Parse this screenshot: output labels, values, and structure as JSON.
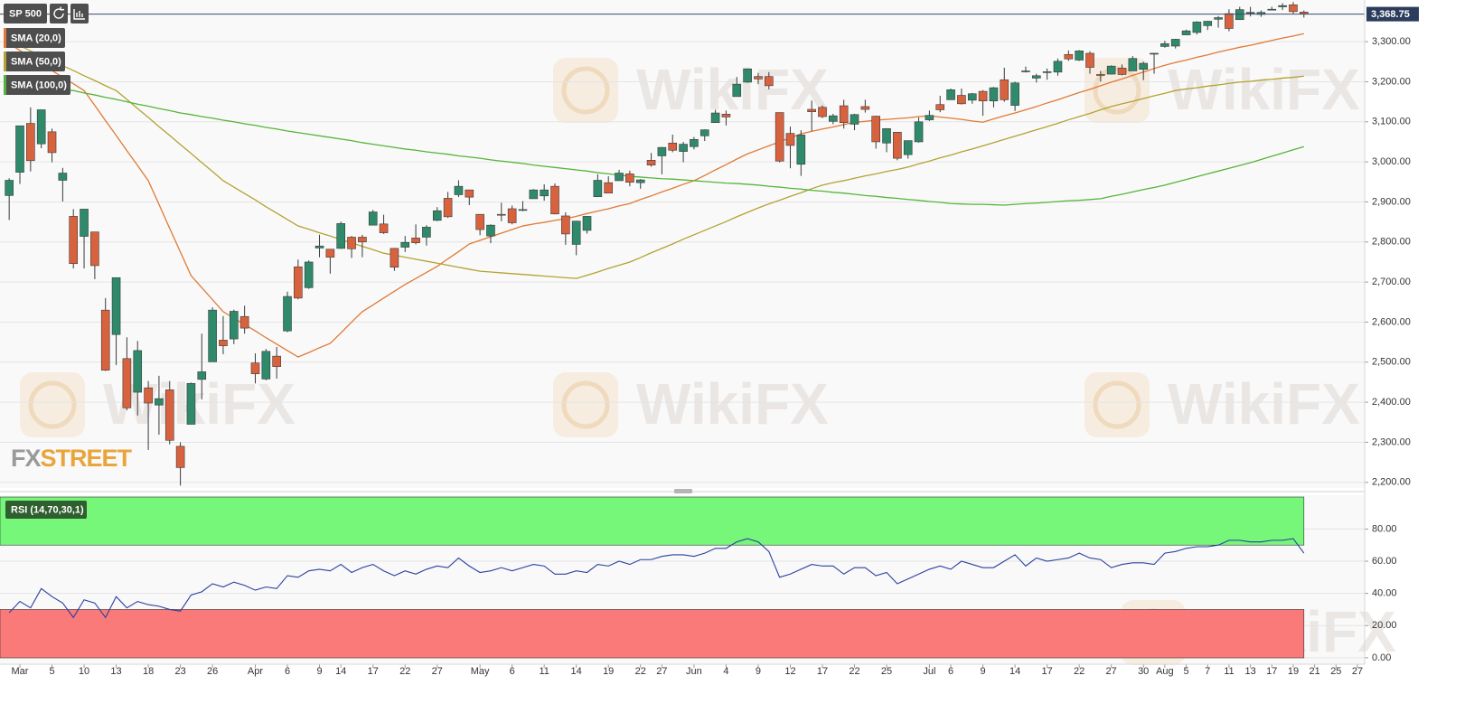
{
  "chart_data": {
    "type": "candlestick",
    "symbol": "SP 500",
    "categories": [
      null,
      "Mar",
      null,
      null,
      "5",
      null,
      null,
      "10",
      null,
      null,
      "13",
      null,
      null,
      "18",
      null,
      null,
      "23",
      null,
      null,
      "26",
      null,
      null,
      null,
      "Apr",
      null,
      null,
      "6",
      null,
      null,
      "9",
      null,
      "14",
      null,
      null,
      "17",
      null,
      null,
      "22",
      null,
      null,
      "27",
      null,
      null,
      null,
      "May",
      null,
      null,
      "6",
      null,
      null,
      "11",
      null,
      null,
      "14",
      null,
      null,
      "19",
      null,
      null,
      "22",
      null,
      "27",
      null,
      null,
      "Jun",
      null,
      null,
      "4",
      null,
      null,
      "9",
      null,
      null,
      "12",
      null,
      null,
      "17",
      null,
      null,
      "22",
      null,
      null,
      "25",
      null,
      null,
      null,
      "Jul",
      null,
      "6",
      null,
      null,
      "9",
      null,
      null,
      "14",
      null,
      null,
      "17",
      null,
      null,
      "22",
      null,
      null,
      "27",
      null,
      null,
      "30",
      null,
      "Aug",
      null,
      "5",
      null,
      "7",
      null,
      "11",
      null,
      "13",
      null,
      "17",
      null,
      "19",
      null,
      "21",
      null,
      "25",
      null,
      "27"
    ],
    "open": [
      2916,
      2974,
      3096,
      3045,
      3075,
      2954,
      2864,
      2814,
      2825,
      2630,
      2569,
      2509,
      2425,
      2436,
      2393,
      2431,
      2290,
      2345,
      2457,
      2501,
      2555,
      2558,
      2614,
      2498,
      2458,
      2515,
      2578,
      2738,
      2686,
      2785,
      2782,
      2784,
      2812,
      2812,
      2842,
      2845,
      2784,
      2787,
      2810,
      2812,
      2854,
      2909,
      2918,
      2930,
      2869,
      2815,
      2869,
      2883,
      2879,
      2908,
      2915,
      2939,
      2865,
      2794,
      2829,
      2913,
      2948,
      2953,
      2970,
      2948,
      3004,
      3015,
      3047,
      3026,
      3038,
      3065,
      3098,
      3119,
      3163,
      3199,
      3213,
      3213,
      3123,
      3071,
      2994,
      3131,
      3136,
      3101,
      3140,
      3094,
      3138,
      3114,
      3047,
      3074,
      3018,
      3050,
      3105,
      3143,
      3155,
      3166,
      3154,
      3176,
      3152,
      3205,
      3141,
      3225,
      3209,
      3224,
      3224,
      3268,
      3254,
      3271,
      3218,
      3219,
      3234,
      3227,
      3231,
      3270,
      3288,
      3289,
      3317,
      3323,
      3340,
      3356,
      3370,
      3355,
      3372,
      3368,
      3380,
      3387,
      3392,
      3374,
      null,
      null,
      null,
      null,
      null
    ],
    "high": [
      2959,
      3090,
      3136,
      3130,
      3083,
      2985,
      2882,
      2882,
      2825,
      2660,
      2711,
      2562,
      2553,
      2453,
      2466,
      2453,
      2300,
      2449,
      2571,
      2637,
      2615,
      2631,
      2641,
      2522,
      2533,
      2538,
      2676,
      2756,
      2754,
      2818,
      2782,
      2851,
      2815,
      2818,
      2880,
      2868,
      2785,
      2815,
      2844,
      2842,
      2887,
      2925,
      2954,
      2930,
      2869,
      2844,
      2898,
      2891,
      2902,
      2932,
      2944,
      2946,
      2874,
      2853,
      2865,
      2969,
      2964,
      2980,
      2978,
      2957,
      3022,
      3037,
      3068,
      3050,
      3062,
      3081,
      3130,
      3128,
      3212,
      3233,
      3222,
      3224,
      3123,
      3088,
      3079,
      3153,
      3141,
      3120,
      3155,
      3120,
      3155,
      3115,
      3084,
      3074,
      3053,
      3111,
      3128,
      3165,
      3183,
      3183,
      3172,
      3179,
      3187,
      3235,
      3200,
      3238,
      3220,
      3233,
      3258,
      3278,
      3279,
      3276,
      3227,
      3241,
      3243,
      3264,
      3250,
      3272,
      3302,
      3307,
      3330,
      3351,
      3352,
      3364,
      3381,
      3387,
      3387,
      3378,
      3387,
      3396,
      3399,
      3378,
      null,
      null,
      null,
      null,
      null
    ],
    "low": [
      2855,
      2945,
      2976,
      3034,
      2999,
      2901,
      2734,
      2734,
      2707,
      2478,
      2493,
      2380,
      2367,
      2281,
      2319,
      2295,
      2192,
      2345,
      2407,
      2501,
      2520,
      2545,
      2571,
      2447,
      2455,
      2459,
      2575,
      2657,
      2683,
      2762,
      2721,
      2783,
      2760,
      2762,
      2842,
      2820,
      2728,
      2775,
      2794,
      2791,
      2852,
      2860,
      2912,
      2892,
      2817,
      2797,
      2852,
      2844,
      2877,
      2908,
      2903,
      2869,
      2793,
      2767,
      2821,
      2913,
      2922,
      2953,
      2939,
      2933,
      2988,
      2969,
      3024,
      2999,
      3031,
      3052,
      3098,
      3091,
      3163,
      3197,
      3194,
      3181,
      2999,
      2984,
      2965,
      3077,
      3109,
      3094,
      3083,
      3079,
      3123,
      3033,
      3024,
      3004,
      3008,
      3048,
      3102,
      3124,
      3155,
      3143,
      3145,
      3115,
      3136,
      3150,
      3127,
      3223,
      3198,
      3205,
      3215,
      3252,
      3252,
      3220,
      3200,
      3218,
      3216,
      3227,
      3204,
      3220,
      3285,
      3283,
      3317,
      3318,
      3329,
      3335,
      3326,
      3355,
      3363,
      3362,
      3379,
      3379,
      3370,
      3360,
      null,
      null,
      null,
      null,
      null
    ],
    "close": [
      2954,
      3090,
      3003,
      3130,
      3023,
      2972,
      2746,
      2882,
      2741,
      2480,
      2711,
      2386,
      2529,
      2398,
      2409,
      2305,
      2237,
      2447,
      2476,
      2630,
      2541,
      2627,
      2585,
      2471,
      2527,
      2489,
      2664,
      2660,
      2750,
      2790,
      2762,
      2846,
      2783,
      2800,
      2875,
      2823,
      2737,
      2799,
      2798,
      2837,
      2878,
      2863,
      2939,
      2912,
      2831,
      2842,
      2868,
      2848,
      2881,
      2930,
      2930,
      2870,
      2820,
      2852,
      2864,
      2954,
      2922,
      2972,
      2949,
      2955,
      2992,
      3036,
      3029,
      3044,
      3056,
      3080,
      3122,
      3112,
      3194,
      3232,
      3207,
      3190,
      3002,
      3041,
      3067,
      3125,
      3113,
      3115,
      3098,
      3118,
      3131,
      3050,
      3083,
      3009,
      3053,
      3100,
      3116,
      3130,
      3180,
      3145,
      3170,
      3152,
      3185,
      3155,
      3197,
      3227,
      3215,
      3225,
      3251,
      3257,
      3277,
      3236,
      3216,
      3239,
      3218,
      3258,
      3246,
      3271,
      3295,
      3306,
      3327,
      3349,
      3351,
      3360,
      3333,
      3380,
      3373,
      3373,
      3381,
      3390,
      3375,
      3368.75,
      null,
      null,
      null,
      null,
      null
    ],
    "up_color": "#2f8a6c",
    "down_color": "#d9623e",
    "ylim": [
      2186,
      3404
    ],
    "yticks": [
      {
        "value": 2200,
        "label": "2,200.00"
      },
      {
        "value": 2300,
        "label": "2,300.00"
      },
      {
        "value": 2400,
        "label": "2,400.00"
      },
      {
        "value": 2500,
        "label": "2,500.00"
      },
      {
        "value": 2600,
        "label": "2,600.00"
      },
      {
        "value": 2700,
        "label": "2,700.00"
      },
      {
        "value": 2800,
        "label": "2,800.00"
      },
      {
        "value": 2900,
        "label": "2,900.00"
      },
      {
        "value": 3000,
        "label": "3,000.00"
      },
      {
        "value": 3100,
        "label": "3,100.00"
      },
      {
        "value": 3200,
        "label": "3,200.00"
      },
      {
        "value": 3300,
        "label": "3,300.00"
      }
    ],
    "grid": true,
    "last_price": {
      "value": 3368.75,
      "label": "3,368.75"
    },
    "series": [
      {
        "name": "SMA (20,0)",
        "color": "#e07a35",
        "values": [
          3295,
          3278,
          3261,
          3245,
          3228,
          3211,
          3195,
          3178,
          3141,
          3103,
          3066,
          3028,
          2991,
          2953,
          2894,
          2834,
          2775,
          2716,
          2686,
          2656,
          2626,
          2610,
          2594,
          2578,
          2561,
          2545,
          2529,
          2513,
          2524,
          2536,
          2547,
          2573,
          2600,
          2626,
          2643,
          2660,
          2677,
          2694,
          2709,
          2724,
          2739,
          2758,
          2776,
          2795,
          2804,
          2813,
          2822,
          2831,
          2840,
          2845,
          2849,
          2854,
          2858,
          2864,
          2871,
          2877,
          2883,
          2890,
          2896,
          2906,
          2915,
          2925,
          2934,
          2944,
          2953,
          2966,
          2980,
          2993,
          3007,
          3020,
          3030,
          3040,
          3050,
          3060,
          3070,
          3076,
          3082,
          3087,
          3093,
          3099,
          3101,
          3104,
          3106,
          3108,
          3110,
          3113,
          3115,
          3112,
          3109,
          3106,
          3102,
          3099,
          3107,
          3115,
          3122,
          3130,
          3138,
          3147,
          3155,
          3164,
          3173,
          3181,
          3190,
          3199,
          3207,
          3216,
          3224,
          3233,
          3241,
          3248,
          3254,
          3261,
          3267,
          3274,
          3280,
          3286,
          3291,
          3297,
          3303,
          3309,
          3314,
          3320,
          null,
          null,
          null,
          null,
          null
        ]
      },
      {
        "name": "SMA (50,0)",
        "color": "#b3a332",
        "values": [
          3302,
          3290,
          3277,
          3265,
          3252,
          3240,
          3228,
          3215,
          3203,
          3190,
          3178,
          3156,
          3133,
          3111,
          3088,
          3066,
          3043,
          3021,
          2998,
          2976,
          2953,
          2937,
          2921,
          2905,
          2888,
          2872,
          2856,
          2840,
          2832,
          2823,
          2815,
          2806,
          2798,
          2789,
          2781,
          2772,
          2767,
          2762,
          2757,
          2752,
          2747,
          2742,
          2737,
          2732,
          2727,
          2725,
          2723,
          2721,
          2719,
          2717,
          2715,
          2713,
          2711,
          2709,
          2717,
          2725,
          2734,
          2742,
          2750,
          2761,
          2773,
          2784,
          2795,
          2807,
          2818,
          2829,
          2840,
          2851,
          2863,
          2874,
          2885,
          2895,
          2904,
          2914,
          2923,
          2933,
          2942,
          2948,
          2953,
          2959,
          2965,
          2970,
          2976,
          2981,
          2987,
          2995,
          3002,
          3010,
          3017,
          3025,
          3032,
          3040,
          3048,
          3056,
          3064,
          3072,
          3080,
          3088,
          3096,
          3105,
          3113,
          3121,
          3130,
          3138,
          3145,
          3151,
          3158,
          3165,
          3171,
          3178,
          3182,
          3185,
          3189,
          3192,
          3196,
          3199,
          3201,
          3204,
          3206,
          3209,
          3211,
          3214,
          null,
          null,
          null,
          null,
          null
        ]
      },
      {
        "name": "SMA (100,0)",
        "color": "#55b53a",
        "values": [
          3190,
          3188,
          3186,
          3184,
          3182,
          3180,
          3178,
          3172,
          3167,
          3161,
          3156,
          3150,
          3144,
          3139,
          3133,
          3128,
          3122,
          3118,
          3113,
          3109,
          3104,
          3100,
          3095,
          3091,
          3086,
          3082,
          3077,
          3073,
          3069,
          3065,
          3061,
          3057,
          3053,
          3048,
          3044,
          3040,
          3036,
          3032,
          3029,
          3025,
          3022,
          3019,
          3015,
          3012,
          3009,
          3005,
          3002,
          2999,
          2996,
          2992,
          2989,
          2986,
          2983,
          2980,
          2977,
          2973,
          2970,
          2967,
          2964,
          2962,
          2960,
          2958,
          2957,
          2955,
          2953,
          2951,
          2949,
          2947,
          2946,
          2944,
          2942,
          2939,
          2937,
          2934,
          2932,
          2929,
          2927,
          2924,
          2922,
          2919,
          2916,
          2914,
          2911,
          2909,
          2906,
          2904,
          2901,
          2899,
          2896,
          2895,
          2894,
          2894,
          2893,
          2892,
          2894,
          2896,
          2897,
          2899,
          2901,
          2903,
          2904,
          2906,
          2908,
          2914,
          2919,
          2925,
          2931,
          2936,
          2942,
          2949,
          2956,
          2963,
          2970,
          2977,
          2984,
          2991,
          2998,
          3006,
          3014,
          3022,
          3030,
          3038,
          null,
          null,
          null,
          null,
          null
        ]
      }
    ],
    "rsi": {
      "name": "RSI (14,70,30,1)",
      "color": "#2b3f9e",
      "values": [
        28,
        35,
        31,
        43,
        38,
        34,
        25,
        36,
        34,
        25,
        38,
        31,
        35,
        33,
        32,
        30,
        29,
        39,
        41,
        46,
        44,
        47,
        45,
        42,
        44,
        43,
        51,
        50,
        54,
        55,
        54,
        58,
        53,
        56,
        58,
        54,
        51,
        54,
        52,
        55,
        57,
        56,
        62,
        57,
        53,
        54,
        56,
        54,
        56,
        58,
        57,
        52,
        52,
        54,
        53,
        58,
        57,
        60,
        58,
        61,
        61,
        63,
        64,
        64,
        63,
        65,
        68,
        68,
        72,
        74,
        72,
        66,
        50,
        52,
        55,
        58,
        57,
        57,
        52,
        56,
        56,
        51,
        53,
        46,
        49,
        52,
        55,
        57,
        55,
        60,
        58,
        56,
        56,
        60,
        64,
        57,
        62,
        60,
        61,
        62,
        65,
        62,
        61,
        56,
        58,
        59,
        59,
        58,
        65,
        66,
        68,
        69,
        69,
        70,
        73,
        73,
        72,
        72,
        73,
        73,
        74,
        65,
        null,
        null,
        null,
        null,
        null
      ],
      "ylim": [
        -4,
        101
      ],
      "yticks": [
        {
          "value": 0,
          "label": "0.00"
        },
        {
          "value": 20,
          "label": "20.00"
        },
        {
          "value": 40,
          "label": "40.00"
        },
        {
          "value": 60,
          "label": "60.00"
        },
        {
          "value": 80,
          "label": "80.00"
        }
      ],
      "overbought": 70,
      "oversold": 30,
      "overbought_color": "#76f77a",
      "oversold_color": "#fa7a7a"
    },
    "watermark": "WikiFX",
    "logo": [
      "FX",
      "STREET"
    ]
  }
}
